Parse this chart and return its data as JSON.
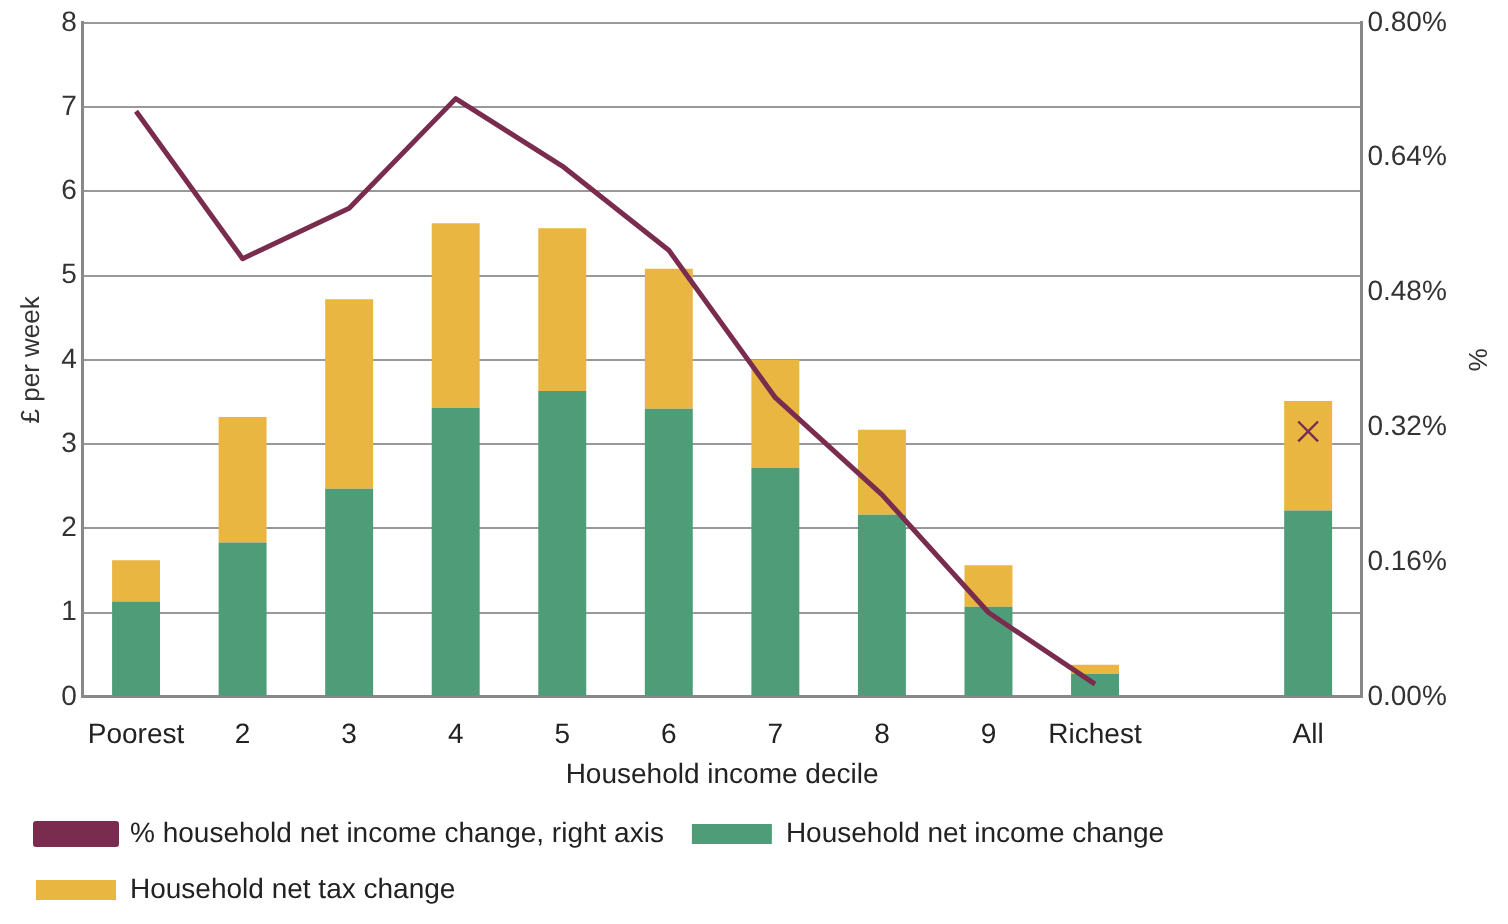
{
  "chart_data": {
    "type": "bar",
    "stacked": true,
    "xlabel": "Household income decile",
    "ylabel": "£ per week",
    "y2label": "%",
    "categories": [
      "Poorest",
      "2",
      "3",
      "4",
      "5",
      "6",
      "7",
      "8",
      "9",
      "Richest",
      null,
      "All"
    ],
    "series": [
      {
        "name": "Household net income change",
        "color": "#4f9d78",
        "values": [
          1.13,
          1.83,
          2.47,
          3.43,
          3.63,
          3.42,
          2.72,
          2.16,
          1.07,
          0.27,
          null,
          2.21
        ]
      },
      {
        "name": "Household net tax change",
        "color": "#e8b641",
        "values": [
          0.49,
          1.49,
          2.25,
          2.19,
          1.93,
          1.66,
          1.28,
          1.01,
          0.49,
          0.11,
          null,
          1.3
        ]
      },
      {
        "name": "% household net income change, right axis",
        "type": "line",
        "axis": "y2",
        "marker": "none",
        "color": "#7a2c4f",
        "values": [
          0.695,
          0.52,
          0.58,
          0.71,
          0.63,
          0.53,
          0.355,
          0.24,
          0.1,
          0.015,
          null,
          null
        ]
      },
      {
        "type": "scatter",
        "axis": "y2",
        "marker": "cross",
        "color": "#7a2c4f",
        "values": [
          null,
          null,
          null,
          null,
          null,
          null,
          null,
          null,
          null,
          null,
          null,
          0.315
        ]
      }
    ],
    "ylim": [
      0,
      8
    ],
    "yticks": [
      0,
      1,
      2,
      3,
      4,
      5,
      6,
      7,
      8
    ],
    "y2lim": [
      0,
      0.8
    ],
    "y2ticks": [
      {
        "value": 0,
        "label": "0.00%"
      },
      {
        "value": 0.16,
        "label": "0.16%"
      },
      {
        "value": 0.32,
        "label": "0.32%"
      },
      {
        "value": 0.48,
        "label": "0.48%"
      },
      {
        "value": 0.64,
        "label": "0.64%"
      },
      {
        "value": 0.8,
        "label": "0.80%"
      }
    ],
    "grid": "y",
    "legend": "bottom"
  }
}
